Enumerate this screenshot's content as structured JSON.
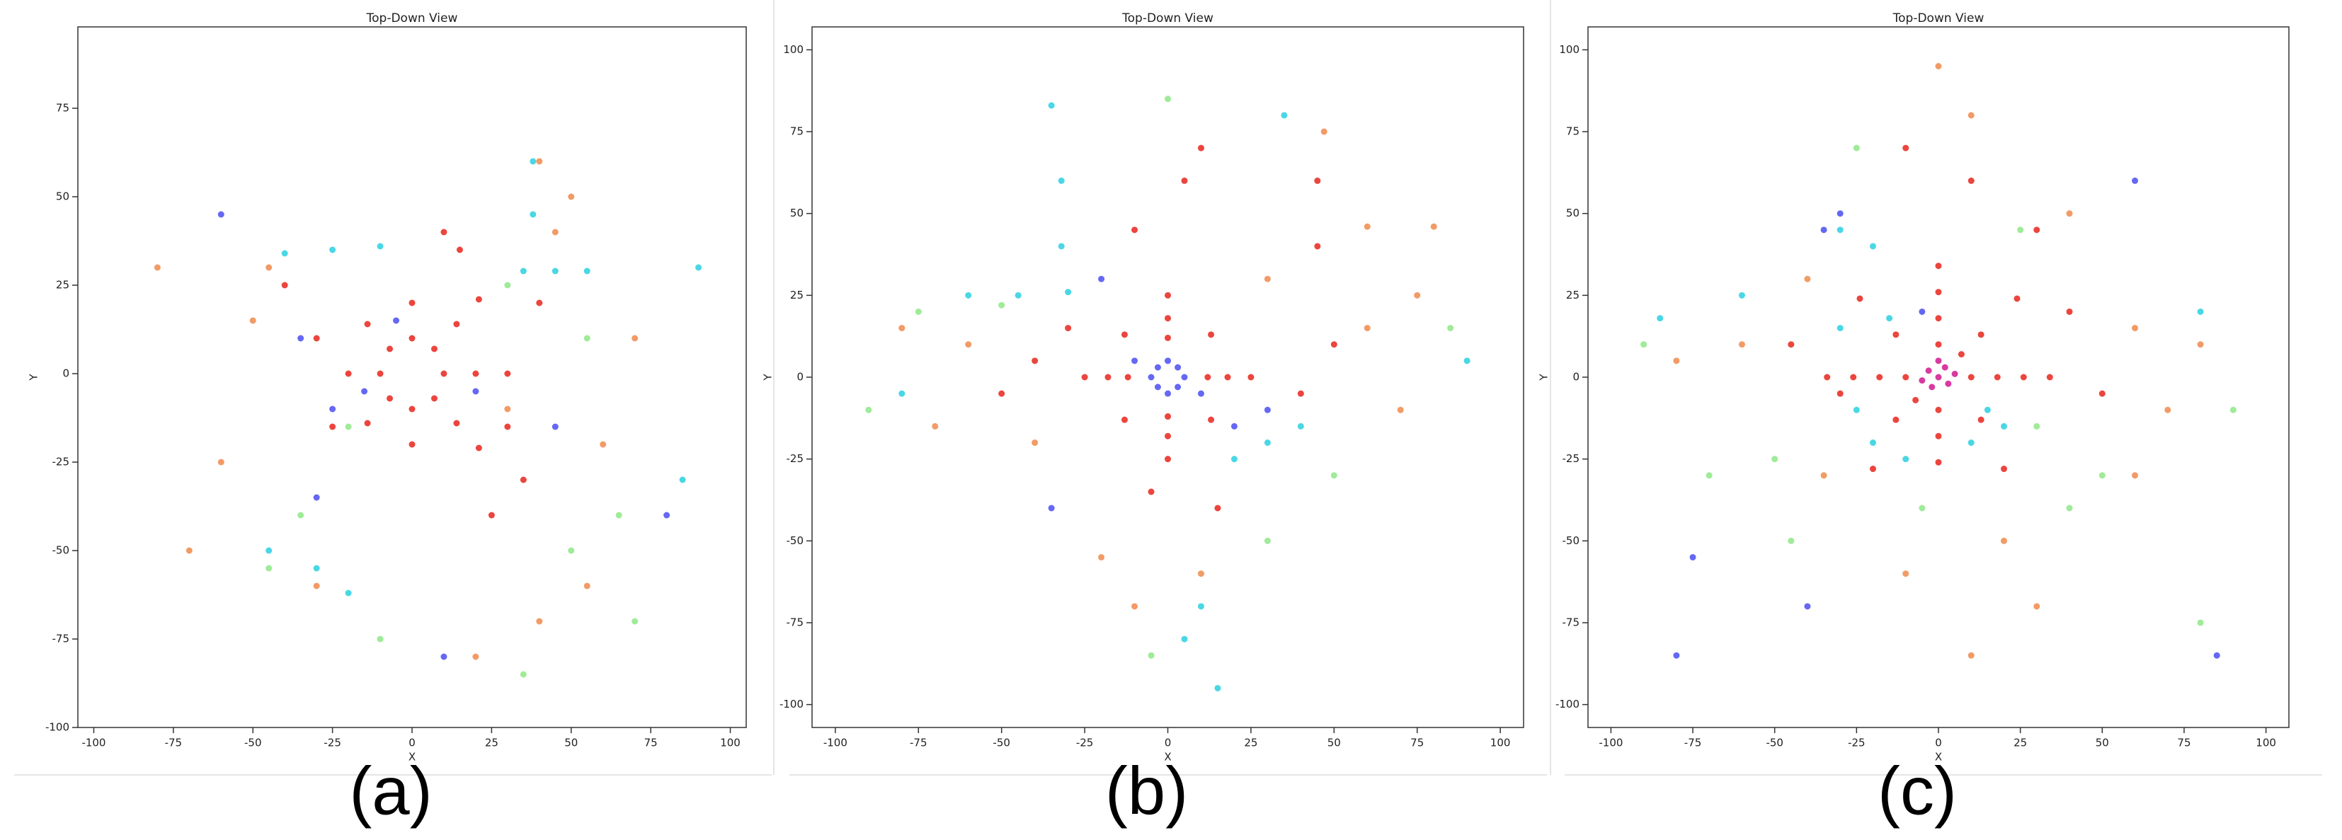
{
  "chart_data": [
    {
      "type": "scatter",
      "title": "Top-Down View",
      "xlabel": "X",
      "ylabel": "Y",
      "caption": "(a)",
      "xlim": [
        -105,
        105
      ],
      "ylim": [
        -100,
        98
      ],
      "xticks": [
        -100,
        -75,
        -50,
        -25,
        0,
        25,
        50,
        75,
        100
      ],
      "yticks": [
        -100,
        -75,
        -50,
        -25,
        0,
        25,
        50,
        75
      ],
      "series": [
        {
          "color": "#e8241c",
          "x": [
            10,
            0,
            -10,
            0,
            7,
            -7,
            -7,
            7,
            20,
            0,
            -20,
            0,
            14,
            -14,
            -14,
            14,
            30,
            21,
            21,
            30,
            -30,
            -25,
            35,
            25,
            40,
            -40,
            10,
            15
          ],
          "values": [
            0,
            10,
            0,
            -10,
            7,
            7,
            -7,
            -7,
            0,
            20,
            0,
            -20,
            14,
            14,
            -14,
            -14,
            0,
            21,
            -21,
            -15,
            10,
            -15,
            -30,
            -40,
            20,
            25,
            40,
            35
          ]
        },
        {
          "color": "#f08a4b",
          "x": [
            -45,
            -50,
            40,
            50,
            60,
            55,
            40,
            -30,
            -70,
            20,
            70,
            -60,
            45,
            -80,
            30
          ],
          "values": [
            30,
            15,
            60,
            50,
            -20,
            -60,
            -70,
            -60,
            -50,
            -80,
            10,
            -25,
            40,
            30,
            -10
          ]
        },
        {
          "color": "#8ee886",
          "x": [
            65,
            55,
            -45,
            50,
            -35,
            -20,
            30,
            70,
            35,
            -10
          ],
          "values": [
            -40,
            10,
            -55,
            -50,
            -40,
            -15,
            25,
            -70,
            -85,
            -75
          ]
        },
        {
          "color": "#2ad0e0",
          "x": [
            -40,
            -25,
            -10,
            35,
            45,
            55,
            -30,
            -20,
            -45,
            85,
            90,
            38,
            38
          ],
          "values": [
            34,
            35,
            36,
            29,
            29,
            29,
            -55,
            -62,
            -50,
            -30,
            30,
            60,
            45
          ]
        },
        {
          "color": "#4a4ef0",
          "x": [
            -15,
            -5,
            -25,
            -60,
            -30,
            80,
            20,
            45,
            10,
            -35
          ],
          "values": [
            -5,
            15,
            -10,
            45,
            -35,
            -40,
            -5,
            -15,
            -80,
            10
          ]
        }
      ]
    },
    {
      "type": "scatter",
      "title": "Top-Down View",
      "xlabel": "X",
      "ylabel": "Y",
      "caption": "(b)",
      "xlim": [
        -107,
        107
      ],
      "ylim": [
        -107,
        107
      ],
      "xticks": [
        -100,
        -75,
        -50,
        -25,
        0,
        25,
        50,
        75,
        100
      ],
      "yticks": [
        -100,
        -75,
        -50,
        -25,
        0,
        25,
        50,
        75,
        100
      ],
      "series": [
        {
          "color": "#e8241c",
          "x": [
            12,
            0,
            -12,
            0,
            18,
            0,
            -18,
            0,
            13,
            -13,
            -13,
            13,
            25,
            -25,
            0,
            0,
            -40,
            -50,
            40,
            50,
            5,
            10,
            -10,
            45,
            45,
            -5,
            15,
            -30
          ],
          "values": [
            0,
            12,
            0,
            -12,
            0,
            18,
            0,
            -18,
            13,
            13,
            -13,
            -13,
            0,
            0,
            25,
            -25,
            5,
            -5,
            -5,
            10,
            60,
            70,
            45,
            60,
            40,
            -35,
            -40,
            15
          ]
        },
        {
          "color": "#f08a4b",
          "x": [
            -60,
            -80,
            -70,
            60,
            75,
            -20,
            10,
            47,
            60,
            80,
            -40,
            30,
            70,
            -10
          ],
          "values": [
            10,
            15,
            -15,
            15,
            25,
            -55,
            -60,
            75,
            46,
            46,
            -20,
            30,
            -10,
            -70
          ]
        },
        {
          "color": "#8ee886",
          "x": [
            -75,
            -90,
            0,
            -5,
            50,
            85,
            -50,
            30
          ],
          "values": [
            20,
            -10,
            85,
            -85,
            -30,
            15,
            22,
            -50
          ]
        },
        {
          "color": "#2ad0e0",
          "x": [
            -60,
            -45,
            -30,
            -32,
            -32,
            -35,
            20,
            30,
            40,
            10,
            5,
            15,
            90,
            -80,
            35
          ],
          "values": [
            25,
            25,
            26,
            40,
            60,
            83,
            -25,
            -20,
            -15,
            -70,
            -80,
            -95,
            5,
            -5,
            80
          ]
        },
        {
          "color": "#4a4ef0",
          "x": [
            5,
            -5,
            0,
            0,
            3,
            -3,
            -3,
            3,
            -10,
            10,
            -35,
            20,
            30,
            -20
          ],
          "values": [
            0,
            0,
            5,
            -5,
            3,
            -3,
            3,
            -3,
            5,
            -5,
            -40,
            -15,
            -10,
            30
          ]
        }
      ]
    },
    {
      "type": "scatter",
      "title": "Top-Down View",
      "xlabel": "X",
      "ylabel": "Y",
      "caption": "(c)",
      "xlim": [
        -107,
        107
      ],
      "ylim": [
        -107,
        107
      ],
      "xticks": [
        -100,
        -75,
        -50,
        -25,
        0,
        25,
        50,
        75,
        100
      ],
      "yticks": [
        -100,
        -75,
        -50,
        -25,
        0,
        25,
        50,
        75,
        100
      ],
      "series": [
        {
          "color": "#e8241c",
          "x": [
            10,
            -10,
            0,
            0,
            7,
            -7,
            18,
            -18,
            0,
            0,
            13,
            -13,
            -13,
            13,
            26,
            -26,
            0,
            0,
            34,
            -34,
            0,
            24,
            -24,
            -20,
            20,
            40,
            -45,
            10,
            -10,
            30,
            -30,
            50
          ],
          "values": [
            0,
            0,
            10,
            -10,
            7,
            -7,
            0,
            0,
            18,
            -18,
            13,
            13,
            -13,
            -13,
            0,
            0,
            26,
            -26,
            0,
            0,
            34,
            24,
            24,
            -28,
            -28,
            20,
            10,
            60,
            70,
            45,
            -5,
            -5
          ]
        },
        {
          "color": "#f08a4b",
          "x": [
            -40,
            -60,
            -80,
            60,
            80,
            20,
            30,
            -10,
            10,
            0,
            10,
            40,
            -35,
            60,
            70
          ],
          "values": [
            30,
            10,
            5,
            15,
            10,
            -50,
            -70,
            -60,
            -85,
            95,
            80,
            50,
            -30,
            -30,
            -10
          ]
        },
        {
          "color": "#8ee886",
          "x": [
            40,
            -50,
            50,
            -70,
            -90,
            90,
            25,
            -25,
            30,
            -45,
            80,
            -5
          ],
          "values": [
            -40,
            -25,
            -30,
            -30,
            10,
            -10,
            45,
            70,
            -15,
            -50,
            -75,
            -40
          ]
        },
        {
          "color": "#2ad0e0",
          "x": [
            -20,
            -10,
            10,
            20,
            -25,
            -30,
            -15,
            -20,
            -30,
            -60,
            -85,
            80,
            15
          ],
          "values": [
            -20,
            -25,
            -20,
            -15,
            -10,
            15,
            18,
            40,
            45,
            25,
            18,
            20,
            -10
          ]
        },
        {
          "color": "#4a4ef0",
          "x": [
            -35,
            -30,
            -75,
            -40,
            60,
            85,
            -80,
            -5
          ],
          "values": [
            45,
            50,
            -55,
            -70,
            60,
            -85,
            -85,
            20
          ]
        },
        {
          "color": "#d0188f",
          "x": [
            0,
            2,
            -3,
            3,
            -2,
            0,
            5,
            -5
          ],
          "values": [
            0,
            3,
            2,
            -2,
            -3,
            5,
            1,
            -1
          ]
        }
      ]
    }
  ]
}
